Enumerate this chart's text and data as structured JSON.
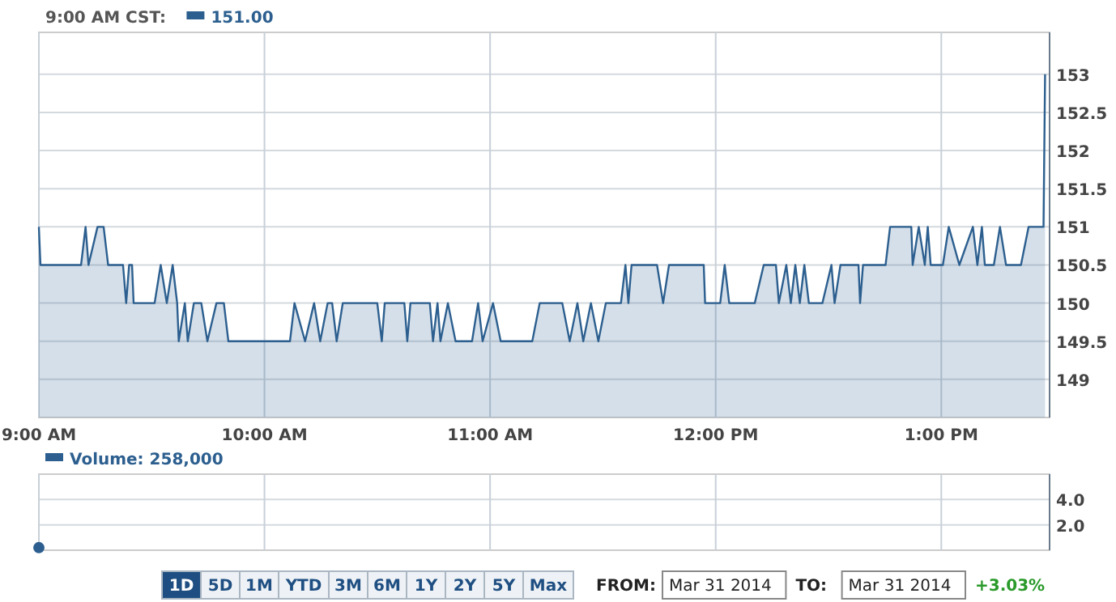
{
  "chart_data": [
    {
      "type": "area",
      "legend_title": "9:00 AM CST:",
      "legend": "top left",
      "grid": true,
      "x": [
        9,
        9.007,
        9.187,
        9.207,
        9.22,
        9.26,
        9.287,
        9.307,
        9.373,
        9.387,
        9.4,
        9.413,
        9.42,
        9.513,
        9.54,
        9.567,
        9.593,
        9.613,
        9.62,
        9.647,
        9.66,
        9.687,
        9.72,
        9.747,
        9.787,
        9.82,
        9.84,
        10.113,
        10.133,
        10.18,
        10.22,
        10.247,
        10.28,
        10.3,
        10.32,
        10.347,
        10.5,
        10.52,
        10.533,
        10.62,
        10.633,
        10.647,
        10.733,
        10.747,
        10.767,
        10.78,
        10.813,
        10.847,
        10.92,
        10.947,
        10.967,
        11.013,
        11.047,
        11.187,
        11.22,
        11.32,
        11.353,
        11.387,
        11.413,
        11.447,
        11.48,
        11.513,
        11.58,
        11.6,
        11.613,
        11.627,
        11.74,
        11.767,
        11.793,
        11.947,
        11.953,
        12.02,
        12.04,
        12.06,
        12.173,
        12.213,
        12.267,
        12.28,
        12.313,
        12.333,
        12.353,
        12.373,
        12.393,
        12.413,
        12.473,
        12.513,
        12.527,
        12.553,
        12.633,
        12.64,
        12.653,
        12.753,
        12.773,
        12.867,
        12.873,
        12.9,
        12.927,
        12.94,
        12.953,
        13.007,
        13.033,
        13.08,
        13.14,
        13.16,
        13.18,
        13.193,
        13.233,
        13.26,
        13.287,
        13.353,
        13.387,
        13.453,
        13.46
      ],
      "series": [
        {
          "name": "151.00",
          "color": "#2c5f8f",
          "values": [
            151,
            150.5,
            150.5,
            151,
            150.5,
            151,
            151,
            150.5,
            150.5,
            150,
            150.5,
            150.5,
            150,
            150,
            150.5,
            150,
            150.5,
            150,
            149.5,
            150,
            149.5,
            150,
            150,
            149.5,
            150,
            150,
            149.5,
            149.5,
            150,
            149.5,
            150,
            149.5,
            150,
            150,
            149.5,
            150,
            150,
            149.5,
            150,
            150,
            149.5,
            150,
            150,
            149.5,
            150,
            149.5,
            150,
            149.5,
            149.5,
            150,
            149.5,
            150,
            149.5,
            149.5,
            150,
            150,
            149.5,
            150,
            149.5,
            150,
            149.5,
            150,
            150,
            150.5,
            150,
            150.5,
            150.5,
            150,
            150.5,
            150.5,
            150,
            150,
            150.5,
            150,
            150,
            150.5,
            150.5,
            150,
            150.5,
            150,
            150.5,
            150,
            150.5,
            150,
            150,
            150.5,
            150,
            150.5,
            150.5,
            150,
            150.5,
            150.5,
            151,
            151,
            150.5,
            151,
            150.5,
            151,
            150.5,
            150.5,
            151,
            150.5,
            151,
            150.5,
            151,
            150.5,
            150.5,
            151,
            150.5,
            150.5,
            151,
            151,
            153
          ]
        }
      ],
      "xlim": [
        9,
        13.48
      ],
      "xticks": [
        {
          "value": 9,
          "label": "9:00 AM"
        },
        {
          "value": 10,
          "label": "10:00 AM"
        },
        {
          "value": 11,
          "label": "11:00 AM"
        },
        {
          "value": 12,
          "label": "12:00 PM"
        },
        {
          "value": 13,
          "label": "1:00 PM"
        }
      ],
      "ylim": [
        148.5,
        153.55
      ],
      "yticks": [
        149,
        149.5,
        150,
        150.5,
        151,
        151.5,
        152,
        152.5,
        153
      ]
    },
    {
      "type": "line",
      "legend": "top left",
      "grid": true,
      "marker": "circle",
      "tick_labels": "y",
      "x": [
        9
      ],
      "series": [
        {
          "name": "Volume: 258,000",
          "color": "#2c5f8f",
          "values": [
            0.2
          ]
        }
      ],
      "xlim": [
        9,
        13.48
      ],
      "xticks": [
        {
          "value": 9,
          "label": null
        },
        {
          "value": 10,
          "label": null
        },
        {
          "value": 11,
          "label": null
        },
        {
          "value": 12,
          "label": null
        },
        {
          "value": 13,
          "label": null
        }
      ],
      "ylim": [
        0,
        6
      ],
      "yticks": [
        {
          "value": 2,
          "label": "2.0"
        },
        {
          "value": 4,
          "label": "4.0"
        }
      ],
      "annotations": [
        "1D",
        "5D",
        "1M",
        "YTD",
        "3M",
        "6M",
        "1Y",
        "2Y",
        "5Y",
        "Max",
        "FROM:",
        "Mar 31 2014",
        "TO:",
        "Mar 31 2014",
        "+3.03%"
      ]
    }
  ]
}
